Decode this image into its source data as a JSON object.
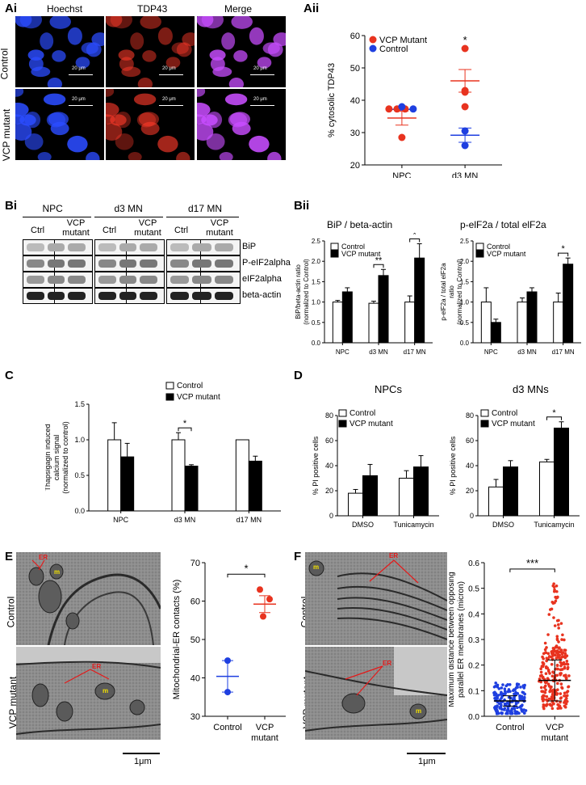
{
  "panels": {
    "Ai": "Ai",
    "Aii": "Aii",
    "Bi": "Bi",
    "Bii": "Bii",
    "C": "C",
    "D": "D",
    "E": "E",
    "F": "F"
  },
  "micro": {
    "col_headers": [
      "Hoechst",
      "TDP43",
      "Merge"
    ],
    "row_labels": [
      "Control",
      "VCP mutant"
    ],
    "scalebar": "20 μm"
  },
  "aii": {
    "ylabel": "% cytosolic TDP43",
    "legend": [
      "VCP Mutant",
      "Control"
    ],
    "colors": {
      "mutant": "#e8331f",
      "control": "#1e3fe0"
    },
    "star": "*"
  },
  "western": {
    "groups": [
      "NPC",
      "d3 MN",
      "d17 MN"
    ],
    "lanes": [
      "Ctrl",
      "VCP mutant"
    ],
    "bands": [
      "BiP",
      "P-eIF2alpha",
      "eIF2alpha",
      "beta-actin"
    ]
  },
  "bii": {
    "title_left": "BiP / beta-actin",
    "title_right": "p-elF2a / total elF2a",
    "ylabel_left": "BiP/beta-actin ratio (normalized to Control)",
    "ylabel_right": "p-elF2a / total elF2a ratio (normalized to Control)",
    "legend": [
      "Control",
      "VCP mutant"
    ]
  },
  "c": {
    "ylabel": "Thapsigagin induced calcium signal (normalized to control)",
    "legend": [
      "Control",
      "VCP mutant"
    ]
  },
  "d": {
    "title_left": "NPCs",
    "title_right": "d3 MNs",
    "ylabel": "% PI positive cells",
    "legend": [
      "Control",
      "VCP mutant"
    ]
  },
  "e": {
    "row_labels": [
      "Control",
      "VCP mutant"
    ],
    "ylabel": "Mitochondrial-ER contacts (%)",
    "scalebar": "1μm",
    "annot_er": "ER",
    "annot_m": "m",
    "xcats": [
      "Control",
      "VCP mutant"
    ]
  },
  "f": {
    "row_labels": [
      "Control",
      "VCP mutant"
    ],
    "ylabel": "Maximum distance between opposing parallel ER membranes (micron)",
    "scalebar": "1μm",
    "annot_er": "ER",
    "annot_m": "m",
    "xcats": [
      "Control",
      "VCP mutant"
    ]
  },
  "chart_data": [
    {
      "id": "Aii",
      "type": "scatter",
      "categories": [
        "NPC",
        "d3 MN"
      ],
      "ylim": [
        20,
        60
      ],
      "yticks": [
        20,
        30,
        40,
        50,
        60
      ],
      "ylabel": "% cytosolic TDP43",
      "series": [
        {
          "name": "VCP Mutant",
          "points": [
            [
              0,
              28.5
            ],
            [
              0,
              37.3
            ],
            [
              0,
              37.3
            ],
            [
              0,
              37.3
            ],
            [
              1,
              56
            ],
            [
              1,
              43
            ],
            [
              1,
              42.5
            ],
            [
              1,
              38
            ]
          ]
        },
        {
          "name": "Control",
          "points": [
            [
              0,
              38
            ],
            [
              0,
              37.3
            ],
            [
              1,
              30.5
            ],
            [
              1,
              26
            ]
          ]
        }
      ],
      "bars": [
        {
          "cat": 0,
          "mean": 34.5,
          "sem": [
            32.3,
            36.6
          ],
          "color": "#e8331f"
        },
        {
          "cat": 0,
          "mean": 37.2,
          "sem": [
            36.9,
            37.5
          ],
          "color": "#1e3fe0"
        },
        {
          "cat": 1,
          "mean": 46,
          "sem": [
            42.5,
            49.5
          ],
          "color": "#e8331f"
        },
        {
          "cat": 1,
          "mean": 29.2,
          "sem": [
            27,
            31.4
          ],
          "color": "#1e3fe0"
        }
      ],
      "sig": [
        {
          "cat": 1,
          "label": "*"
        }
      ]
    },
    {
      "id": "Bii-left",
      "type": "bar",
      "categories": [
        "NPC",
        "d3 MN",
        "d17 MN"
      ],
      "ylim": [
        0,
        2.5
      ],
      "yticks": [
        0.0,
        0.5,
        1.0,
        1.5,
        2.0,
        2.5
      ],
      "series": [
        {
          "name": "Control",
          "values": [
            1.0,
            0.97,
            1.0
          ],
          "err": [
            0.04,
            0.05,
            0.15
          ]
        },
        {
          "name": "VCP mutant",
          "values": [
            1.25,
            1.65,
            2.08
          ],
          "err": [
            0.1,
            0.15,
            0.35
          ]
        }
      ],
      "sig": [
        {
          "cat": 1,
          "label": "**"
        },
        {
          "cat": 2,
          "label": "*"
        }
      ]
    },
    {
      "id": "Bii-right",
      "type": "bar",
      "categories": [
        "NPC",
        "d3 MN",
        "d17 MN"
      ],
      "ylim": [
        0,
        2.5
      ],
      "yticks": [
        0.0,
        0.5,
        1.0,
        1.5,
        2.0,
        2.5
      ],
      "series": [
        {
          "name": "Control",
          "values": [
            1.0,
            1.0,
            1.0
          ],
          "err": [
            0.35,
            0.1,
            0.22
          ]
        },
        {
          "name": "VCP mutant",
          "values": [
            0.5,
            1.25,
            1.93
          ],
          "err": [
            0.08,
            0.1,
            0.15
          ]
        }
      ],
      "sig": [
        {
          "cat": 2,
          "label": "*"
        }
      ]
    },
    {
      "id": "C",
      "type": "bar",
      "categories": [
        "NPC",
        "d3 MN",
        "d17 MN"
      ],
      "ylim": [
        0,
        1.5
      ],
      "yticks": [
        0.0,
        0.5,
        1.0,
        1.5
      ],
      "series": [
        {
          "name": "Control",
          "values": [
            1.0,
            1.0,
            1.0
          ],
          "err": [
            0.24,
            0.1,
            0
          ]
        },
        {
          "name": "VCP mutant",
          "values": [
            0.76,
            0.63,
            0.7
          ],
          "err": [
            0.19,
            0.02,
            0.07
          ]
        }
      ],
      "sig": [
        {
          "cat": 1,
          "label": "*"
        }
      ]
    },
    {
      "id": "D-left",
      "type": "bar",
      "categories": [
        "DMSO",
        "Tunicamycin"
      ],
      "ylim": [
        0,
        80
      ],
      "yticks": [
        0,
        20,
        40,
        60,
        80
      ],
      "series": [
        {
          "name": "Control",
          "values": [
            18,
            30
          ],
          "err": [
            3,
            6
          ]
        },
        {
          "name": "VCP mutant",
          "values": [
            32,
            39
          ],
          "err": [
            9,
            9
          ]
        }
      ],
      "sig": []
    },
    {
      "id": "D-right",
      "type": "bar",
      "categories": [
        "DMSO",
        "Tunicamycin"
      ],
      "ylim": [
        0,
        80
      ],
      "yticks": [
        0,
        20,
        40,
        60,
        80
      ],
      "series": [
        {
          "name": "Control",
          "values": [
            23,
            43
          ],
          "err": [
            6,
            2
          ]
        },
        {
          "name": "VCP mutant",
          "values": [
            39,
            70
          ],
          "err": [
            5,
            5
          ]
        }
      ],
      "sig": [
        {
          "cat": 1,
          "label": "*"
        }
      ]
    },
    {
      "id": "E",
      "type": "scatter",
      "categories": [
        "Control",
        "VCP mutant"
      ],
      "ylim": [
        30,
        70
      ],
      "yticks": [
        30,
        40,
        50,
        60,
        70
      ],
      "series": [
        {
          "name": "Control",
          "points": [
            [
              0,
              44.5
            ],
            [
              0,
              36.3
            ]
          ]
        },
        {
          "name": "VCP mutant",
          "points": [
            [
              1,
              63
            ],
            [
              1,
              60.5
            ],
            [
              1,
              56
            ]
          ]
        }
      ],
      "bars": [
        {
          "cat": 0,
          "mean": 40.4,
          "sem": [
            36.3,
            44.5
          ],
          "color": "#1e3fe0"
        },
        {
          "cat": 1,
          "mean": 59.2,
          "sem": [
            57,
            61.4
          ],
          "color": "#e8331f"
        }
      ],
      "sig": [
        {
          "label": "*"
        }
      ]
    },
    {
      "id": "F",
      "type": "scatter",
      "categories": [
        "Control",
        "VCP mutant"
      ],
      "ylim": [
        0,
        0.6
      ],
      "yticks": [
        0.0,
        0.1,
        0.2,
        0.3,
        0.4,
        0.5,
        0.6
      ],
      "summary": [
        {
          "cat": 0,
          "mean": 0.06,
          "sd": [
            0.04,
            0.08
          ],
          "min": 0.01,
          "max": 0.13,
          "color": "#1e3fe0"
        },
        {
          "cat": 1,
          "mean": 0.14,
          "sd": [
            0.06,
            0.22
          ],
          "min": 0.02,
          "max": 0.52,
          "color": "#e8331f"
        }
      ],
      "sig": [
        {
          "label": "***"
        }
      ]
    }
  ]
}
